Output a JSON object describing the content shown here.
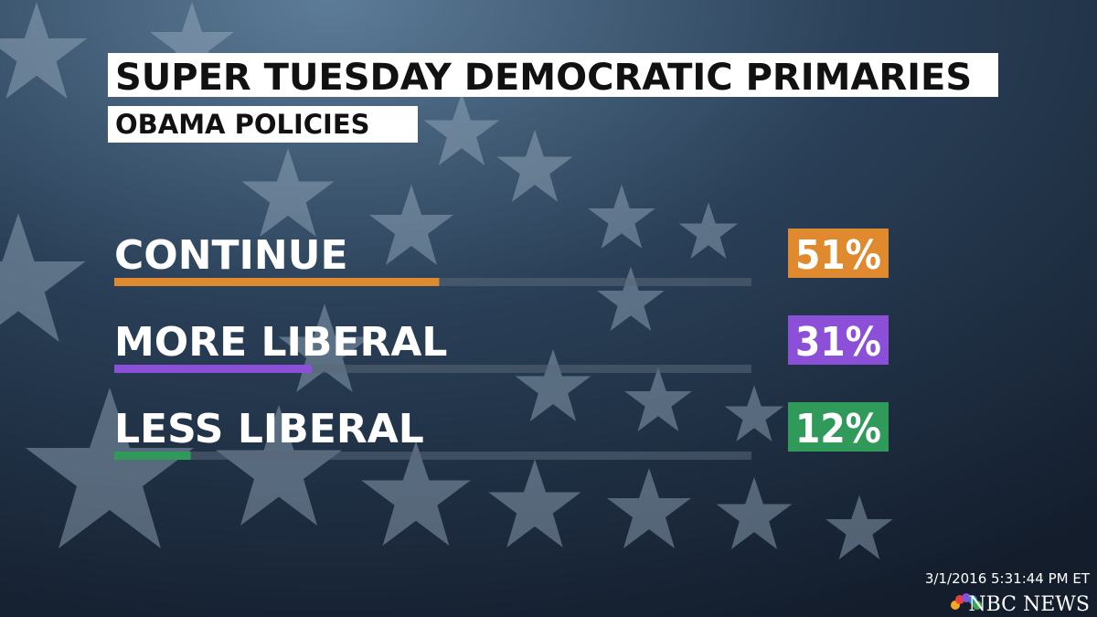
{
  "chart_data": {
    "type": "bar",
    "orientation": "horizontal",
    "title": "SUPER TUESDAY DEMOCRATIC PRIMARIES",
    "subtitle": "OBAMA POLICIES",
    "categories": [
      "CONTINUE",
      "MORE LIBERAL",
      "LESS LIBERAL"
    ],
    "values": [
      51,
      31,
      12
    ],
    "value_labels": [
      "51%",
      "31%",
      "12%"
    ],
    "colors": [
      "#e08a30",
      "#8b4fd8",
      "#2f9a5a"
    ],
    "xlim": [
      0,
      100
    ]
  },
  "timestamp": "3/1/2016 5:31:44 PM ET",
  "network": "NBC NEWS"
}
